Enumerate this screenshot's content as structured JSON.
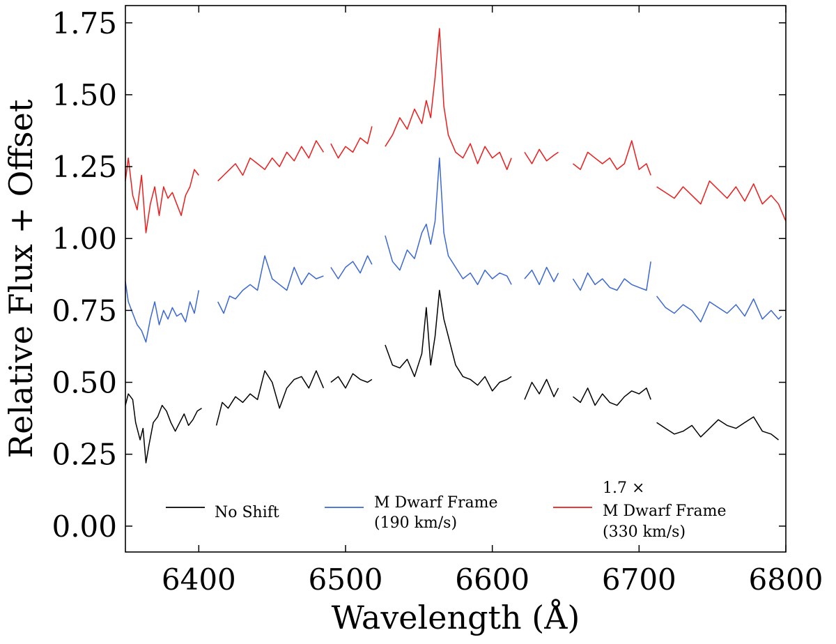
{
  "chart_data": {
    "type": "line",
    "xlabel": "Wavelength (Å)",
    "ylabel": "Relative Flux + Offset",
    "xlim": [
      6350,
      6800
    ],
    "ylim": [
      -0.09,
      1.81
    ],
    "xticks": [
      6400,
      6500,
      6600,
      6700,
      6800
    ],
    "xtick_labels": [
      "6400",
      "6500",
      "6600",
      "6700",
      "6800"
    ],
    "yticks": [
      0.0,
      0.25,
      0.5,
      0.75,
      1.0,
      1.25,
      1.5,
      1.75
    ],
    "ytick_labels": [
      "0.00",
      "0.25",
      "0.50",
      "0.75",
      "1.00",
      "1.25",
      "1.50",
      "1.75"
    ],
    "legend": {
      "location": "bottom-center",
      "columns": 3
    },
    "series": [
      {
        "name": "No Shift",
        "legend_lines": [
          "No Shift"
        ],
        "color": "#000000",
        "segments": [
          {
            "x": [
              6350,
              6352,
              6355,
              6357,
              6360,
              6362,
              6364,
              6366,
              6369,
              6372,
              6375,
              6378,
              6381,
              6384,
              6387,
              6390,
              6393,
              6396,
              6399,
              6402
            ],
            "y": [
              0.42,
              0.46,
              0.44,
              0.36,
              0.3,
              0.34,
              0.22,
              0.28,
              0.36,
              0.38,
              0.42,
              0.4,
              0.36,
              0.33,
              0.36,
              0.39,
              0.35,
              0.37,
              0.4,
              0.41
            ]
          },
          {
            "x": [
              6412,
              6416,
              6420,
              6425,
              6430,
              6435,
              6440,
              6445,
              6450,
              6455,
              6460,
              6465,
              6470,
              6475,
              6480,
              6485
            ],
            "y": [
              0.35,
              0.43,
              0.41,
              0.45,
              0.43,
              0.46,
              0.44,
              0.54,
              0.5,
              0.41,
              0.48,
              0.51,
              0.52,
              0.48,
              0.54,
              0.48
            ]
          },
          {
            "x": [
              6490,
              6495,
              6500,
              6505,
              6510,
              6515,
              6518
            ],
            "y": [
              0.5,
              0.52,
              0.48,
              0.53,
              0.51,
              0.5,
              0.51
            ]
          },
          {
            "x": [
              6527,
              6532,
              6537,
              6542,
              6547,
              6552,
              6555,
              6558,
              6561,
              6564,
              6567,
              6570,
              6575,
              6580,
              6585,
              6590,
              6595,
              6600,
              6605,
              6610,
              6613
            ],
            "y": [
              0.63,
              0.56,
              0.55,
              0.58,
              0.52,
              0.6,
              0.76,
              0.56,
              0.66,
              0.82,
              0.72,
              0.66,
              0.56,
              0.52,
              0.51,
              0.49,
              0.52,
              0.47,
              0.5,
              0.51,
              0.52
            ]
          },
          {
            "x": [
              6622,
              6627,
              6632,
              6637,
              6642,
              6645
            ],
            "y": [
              0.44,
              0.5,
              0.46,
              0.51,
              0.45,
              0.48
            ]
          },
          {
            "x": [
              6655,
              6660,
              6665,
              6670,
              6675,
              6680,
              6685,
              6690,
              6695,
              6700,
              6705,
              6708
            ],
            "y": [
              0.45,
              0.43,
              0.48,
              0.42,
              0.46,
              0.43,
              0.42,
              0.45,
              0.47,
              0.46,
              0.48,
              0.44
            ]
          },
          {
            "x": [
              6712,
              6718,
              6724,
              6730,
              6736,
              6742,
              6748,
              6754,
              6760,
              6766,
              6772,
              6778,
              6784,
              6790,
              6795
            ],
            "y": [
              0.36,
              0.34,
              0.32,
              0.33,
              0.35,
              0.31,
              0.34,
              0.37,
              0.35,
              0.34,
              0.36,
              0.38,
              0.33,
              0.32,
              0.3
            ]
          }
        ]
      },
      {
        "name": "M Dwarf Frame (190 km/s)",
        "legend_lines": [
          "M Dwarf Frame",
          "(190 km/s)"
        ],
        "color": "#3a67d4",
        "segments": [
          {
            "x": [
              6350,
              6352,
              6355,
              6358,
              6361,
              6364,
              6367,
              6370,
              6373,
              6376,
              6379,
              6382,
              6385,
              6388,
              6391,
              6394,
              6397,
              6400
            ],
            "y": [
              0.85,
              0.78,
              0.74,
              0.7,
              0.68,
              0.64,
              0.72,
              0.78,
              0.7,
              0.75,
              0.72,
              0.76,
              0.73,
              0.74,
              0.71,
              0.78,
              0.74,
              0.82
            ]
          },
          {
            "x": [
              6413,
              6417,
              6421,
              6425,
              6430,
              6435,
              6440,
              6445,
              6450,
              6455,
              6460,
              6465,
              6470,
              6475,
              6480,
              6485
            ],
            "y": [
              0.78,
              0.74,
              0.8,
              0.79,
              0.82,
              0.84,
              0.82,
              0.94,
              0.86,
              0.84,
              0.82,
              0.9,
              0.84,
              0.88,
              0.86,
              0.87
            ]
          },
          {
            "x": [
              6490,
              6495,
              6500,
              6505,
              6510,
              6515,
              6518
            ],
            "y": [
              0.9,
              0.86,
              0.9,
              0.92,
              0.88,
              0.94,
              0.91
            ]
          },
          {
            "x": [
              6527,
              6532,
              6537,
              6542,
              6547,
              6552,
              6555,
              6558,
              6561,
              6564,
              6567,
              6570,
              6575,
              6580,
              6585,
              6590,
              6595,
              6600,
              6605,
              6610,
              6613
            ],
            "y": [
              1.01,
              0.92,
              0.89,
              0.96,
              0.93,
              1.02,
              1.05,
              0.98,
              1.06,
              1.28,
              1.02,
              0.94,
              0.9,
              0.86,
              0.88,
              0.84,
              0.89,
              0.86,
              0.88,
              0.87,
              0.84
            ]
          },
          {
            "x": [
              6622,
              6627,
              6632,
              6637,
              6642,
              6645
            ],
            "y": [
              0.86,
              0.89,
              0.84,
              0.9,
              0.85,
              0.88
            ]
          },
          {
            "x": [
              6655,
              6660,
              6665,
              6670,
              6675,
              6680,
              6685,
              6690,
              6695,
              6700,
              6705,
              6708
            ],
            "y": [
              0.86,
              0.82,
              0.88,
              0.84,
              0.86,
              0.83,
              0.82,
              0.86,
              0.84,
              0.83,
              0.82,
              0.92
            ]
          },
          {
            "x": [
              6712,
              6718,
              6724,
              6730,
              6736,
              6742,
              6748,
              6754,
              6760,
              6766,
              6772,
              6778,
              6784,
              6790,
              6795,
              6797
            ],
            "y": [
              0.8,
              0.76,
              0.74,
              0.77,
              0.75,
              0.71,
              0.78,
              0.76,
              0.74,
              0.77,
              0.73,
              0.79,
              0.72,
              0.75,
              0.72,
              0.73
            ]
          }
        ]
      },
      {
        "name": "1.7 × M Dwarf Frame (330 km/s)",
        "legend_lines": [
          "1.7 ×",
          "M Dwarf Frame",
          "(330 km/s)"
        ],
        "color": "#ed1c1c",
        "segments": [
          {
            "x": [
              6350,
              6352,
              6355,
              6358,
              6361,
              6364,
              6367,
              6370,
              6373,
              6376,
              6379,
              6382,
              6385,
              6388,
              6391,
              6394,
              6397,
              6400
            ],
            "y": [
              1.2,
              1.28,
              1.15,
              1.1,
              1.22,
              1.02,
              1.12,
              1.18,
              1.08,
              1.18,
              1.14,
              1.16,
              1.12,
              1.08,
              1.15,
              1.18,
              1.24,
              1.22
            ]
          },
          {
            "x": [
              6413,
              6417,
              6421,
              6425,
              6430,
              6435,
              6440,
              6445,
              6450,
              6455,
              6460,
              6465,
              6470,
              6475,
              6480,
              6485
            ],
            "y": [
              1.2,
              1.22,
              1.24,
              1.26,
              1.22,
              1.28,
              1.26,
              1.24,
              1.28,
              1.25,
              1.3,
              1.27,
              1.32,
              1.28,
              1.34,
              1.3
            ]
          },
          {
            "x": [
              6490,
              6495,
              6500,
              6505,
              6510,
              6515,
              6518
            ],
            "y": [
              1.33,
              1.28,
              1.32,
              1.3,
              1.35,
              1.33,
              1.39
            ]
          },
          {
            "x": [
              6527,
              6532,
              6537,
              6542,
              6547,
              6552,
              6555,
              6558,
              6561,
              6564,
              6567,
              6570,
              6575,
              6580,
              6585,
              6590,
              6595,
              6600,
              6605,
              6610,
              6613
            ],
            "y": [
              1.32,
              1.36,
              1.42,
              1.38,
              1.45,
              1.4,
              1.48,
              1.42,
              1.56,
              1.73,
              1.46,
              1.36,
              1.3,
              1.28,
              1.33,
              1.26,
              1.32,
              1.28,
              1.3,
              1.24,
              1.28
            ]
          },
          {
            "x": [
              6622,
              6627,
              6632,
              6637,
              6642,
              6645
            ],
            "y": [
              1.3,
              1.26,
              1.31,
              1.27,
              1.29,
              1.3
            ]
          },
          {
            "x": [
              6655,
              6660,
              6665,
              6670,
              6675,
              6680,
              6685,
              6690,
              6695,
              6700,
              6705,
              6708
            ],
            "y": [
              1.26,
              1.24,
              1.3,
              1.28,
              1.26,
              1.28,
              1.24,
              1.26,
              1.34,
              1.24,
              1.26,
              1.22
            ]
          },
          {
            "x": [
              6712,
              6718,
              6724,
              6730,
              6736,
              6742,
              6748,
              6754,
              6760,
              6766,
              6772,
              6778,
              6784,
              6790,
              6795,
              6800
            ],
            "y": [
              1.18,
              1.16,
              1.14,
              1.18,
              1.15,
              1.12,
              1.2,
              1.17,
              1.14,
              1.18,
              1.13,
              1.19,
              1.12,
              1.15,
              1.12,
              1.06
            ]
          }
        ]
      }
    ]
  }
}
